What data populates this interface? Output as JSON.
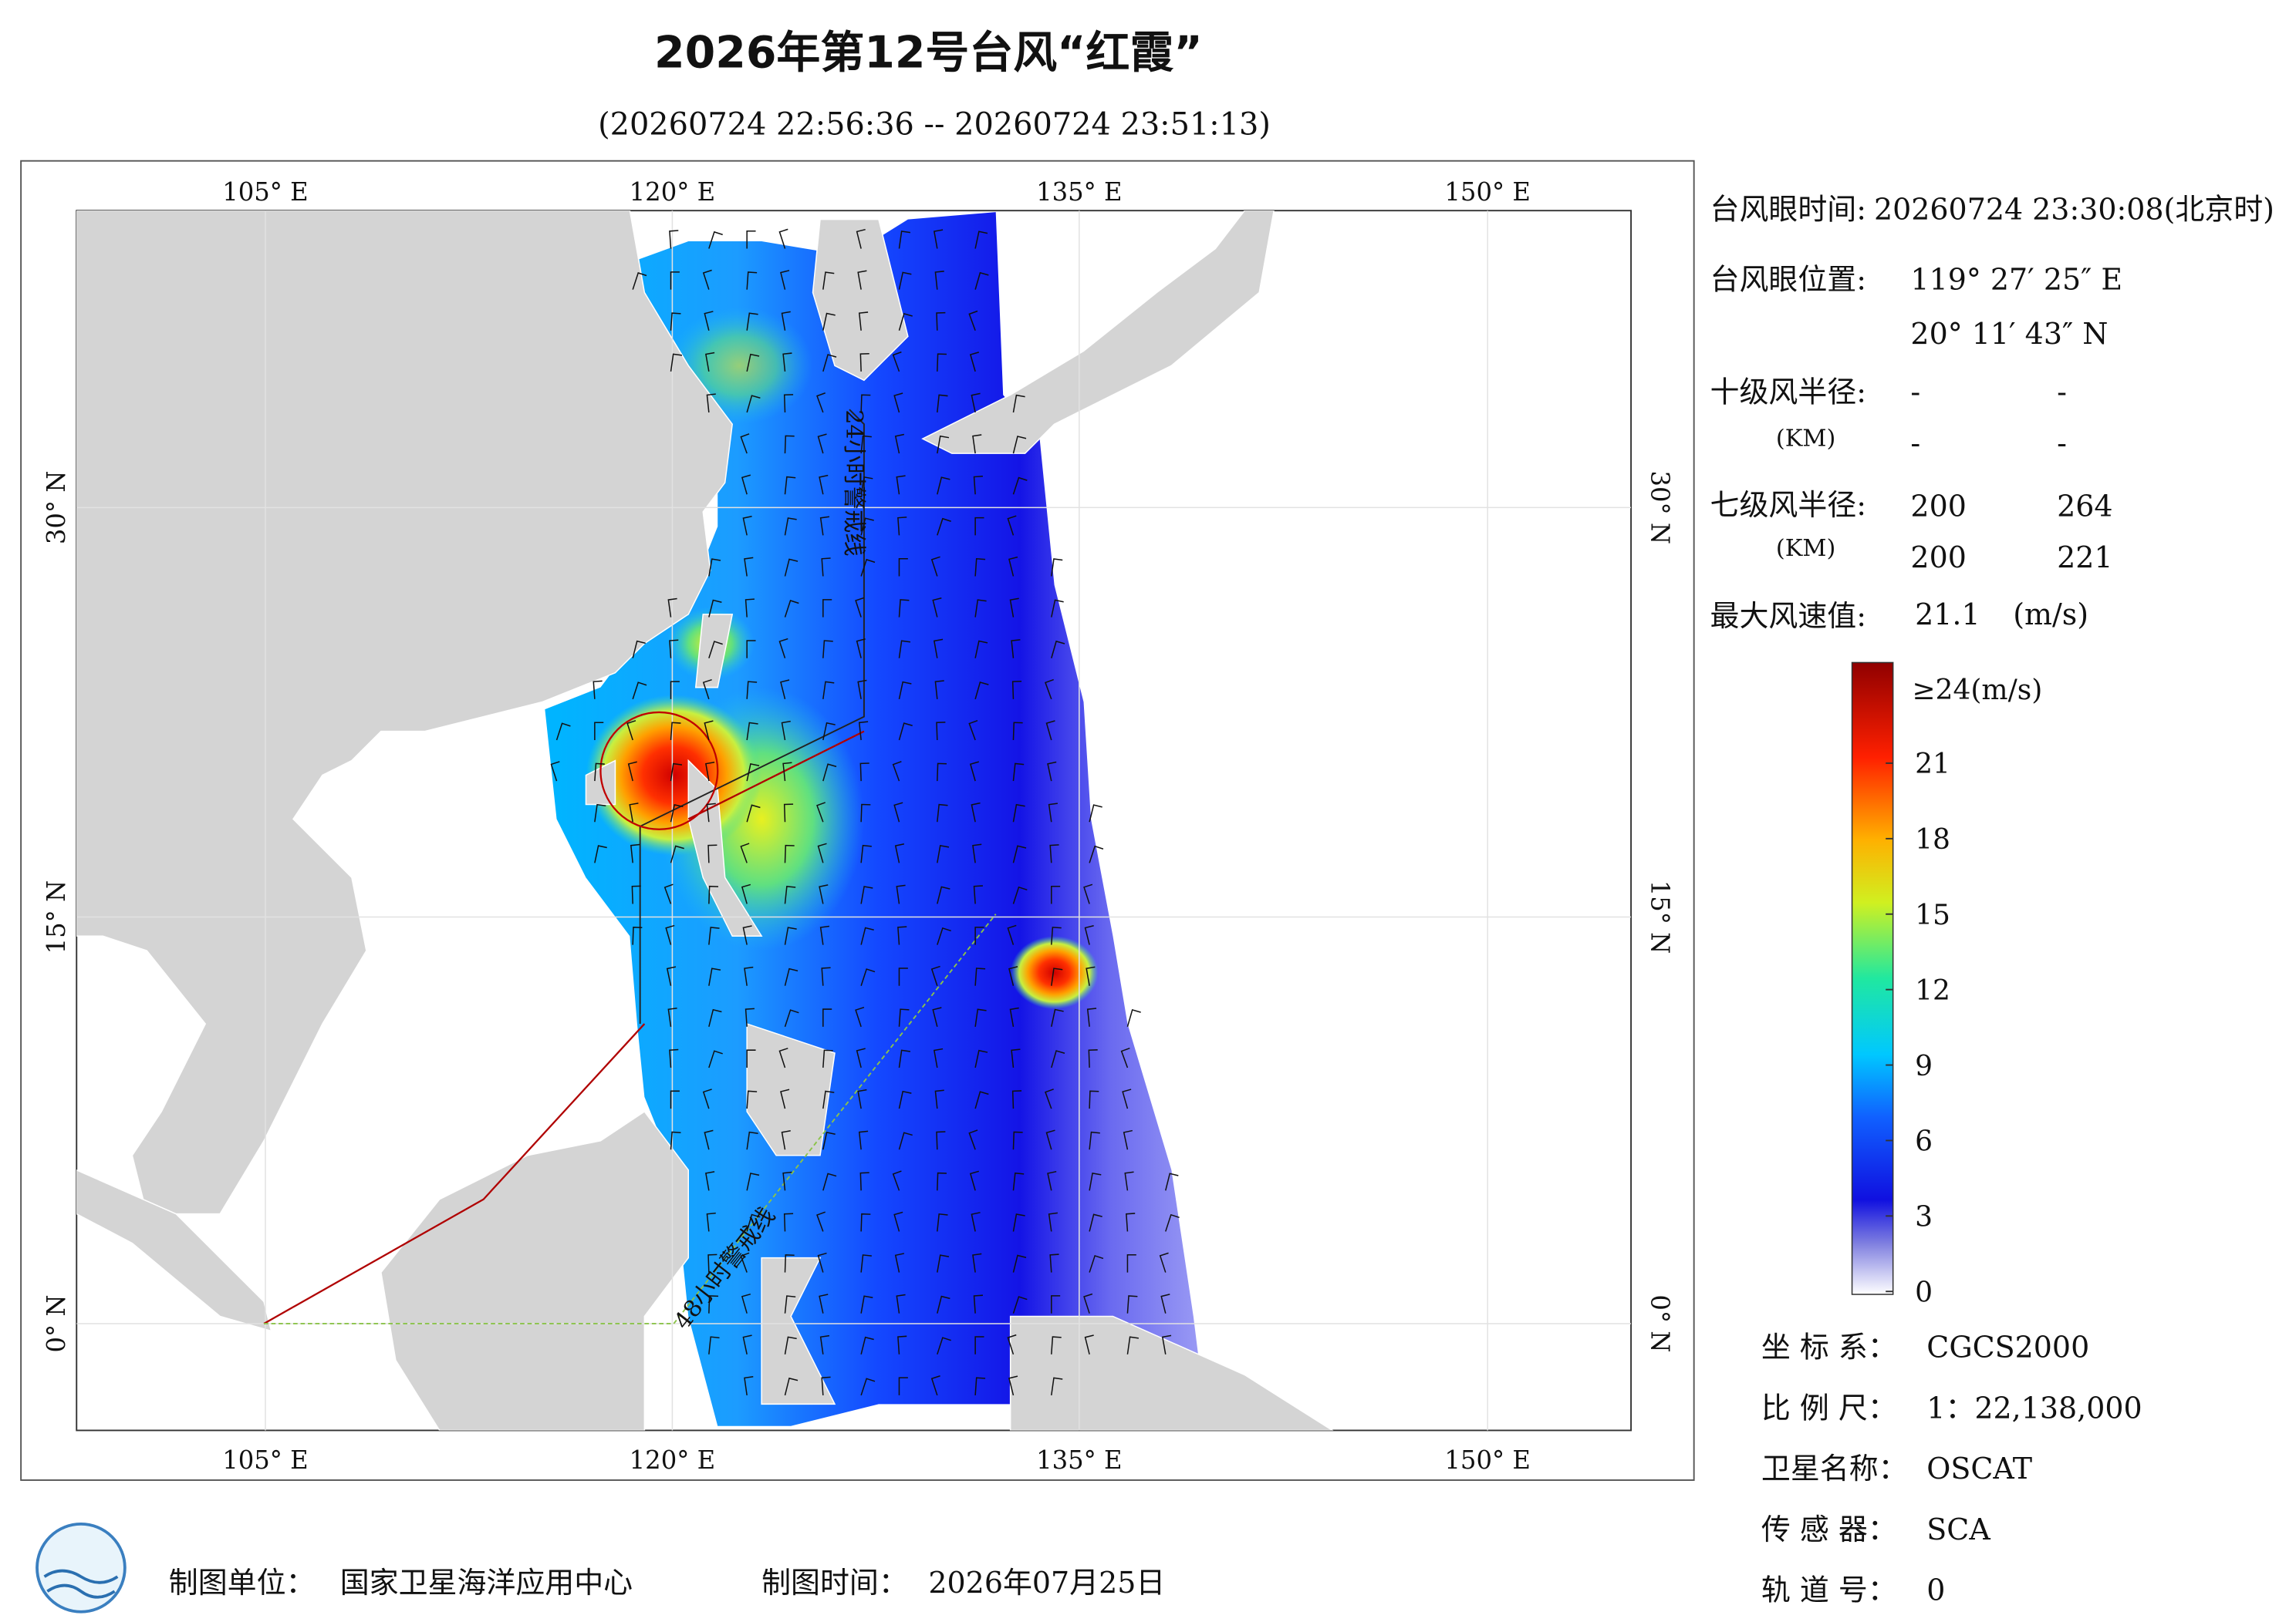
{
  "title": "2026年第12号台风“红霞”",
  "subtitle": "(20260724 22:56:36 -- 20260724 23:51:13)",
  "map": {
    "lon_ticks": [
      "105° E",
      "120° E",
      "135° E",
      "150° E"
    ],
    "lat_ticks": [
      "30° N",
      "15° N",
      "0° N"
    ],
    "warning_lines": [
      "24小时警戒线",
      "48小时警戒线"
    ]
  },
  "info": {
    "eye_time_label": "台风眼时间:",
    "eye_time": "20260724 23:30:08(北京时)",
    "eye_pos_label": "台风眼位置:",
    "eye_lon": "119° 27′ 25″ E",
    "eye_lat": "20° 11′ 43″ N",
    "r10_label": "十级风半径:",
    "r10_unit": "(KM)",
    "r10_values": [
      "-",
      "-",
      "-",
      "-"
    ],
    "r7_label": "七级风半径:",
    "r7_unit": "(KM)",
    "r7_values": [
      "200",
      "264",
      "200",
      "221"
    ],
    "max_label": "最大风速值:",
    "max_value": "21.1",
    "max_unit": "(m/s)"
  },
  "colorbar": {
    "top_label": "≥24(m/s)",
    "ticks": [
      0,
      3,
      6,
      9,
      12,
      15,
      18,
      21
    ]
  },
  "meta": [
    {
      "label": "坐 标 系：",
      "value": "CGCS2000"
    },
    {
      "label": "比 例 尺：",
      "value": "1：22,138,000"
    },
    {
      "label": "卫星名称：",
      "value": "OSCAT"
    },
    {
      "label": "传 感 器：",
      "value": "SCA"
    },
    {
      "label": "轨 道 号：",
      "value": "0"
    }
  ],
  "footer": {
    "unit_label": "制图单位：",
    "unit": "国家卫星海洋应用中心",
    "time_label": "制图时间：",
    "time": "2026年07月25日"
  }
}
